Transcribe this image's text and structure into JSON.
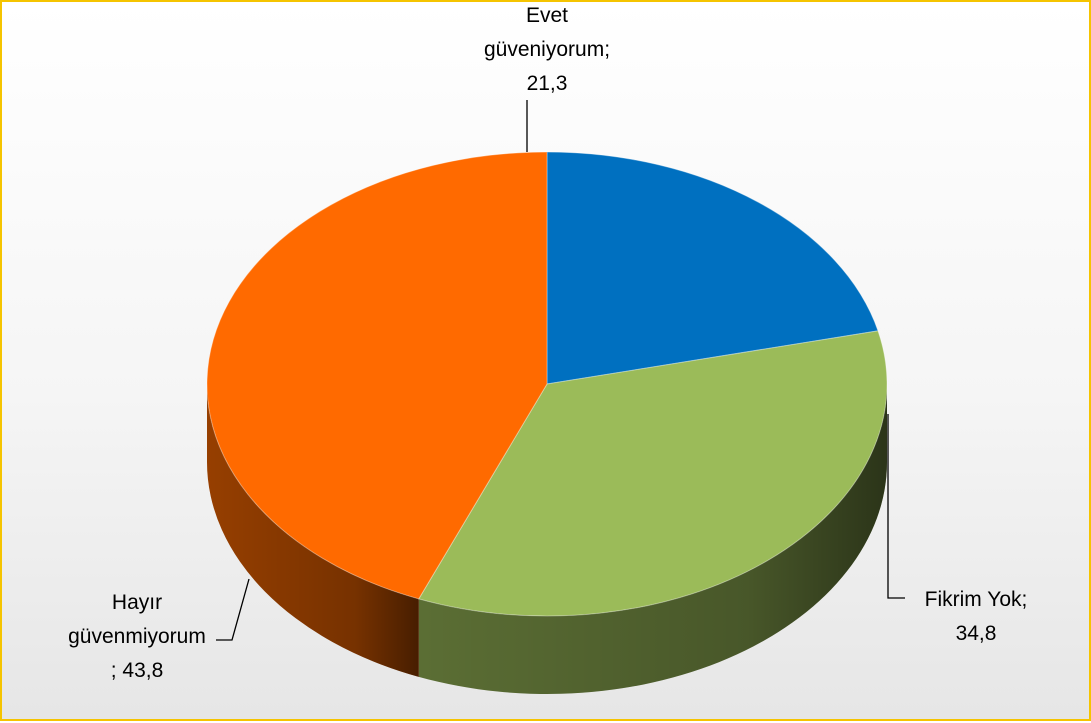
{
  "chart_data": {
    "type": "pie",
    "title": "",
    "legend": "none",
    "three_d": true,
    "start": "top",
    "direction": "clockwise",
    "slices": [
      {
        "label_lines": [
          "Evet",
          "güveniyorum;",
          "21,3"
        ],
        "value": 21.3,
        "color": "#0070c0"
      },
      {
        "label_lines": [
          "Fikrim Yok;",
          "34,8"
        ],
        "value": 34.8,
        "color": "#9bbb59"
      },
      {
        "label_lines": [
          "Hayır",
          "güvenmiyorum",
          "; 43,8"
        ],
        "value": 43.8,
        "color": "#ff6a00"
      }
    ]
  }
}
